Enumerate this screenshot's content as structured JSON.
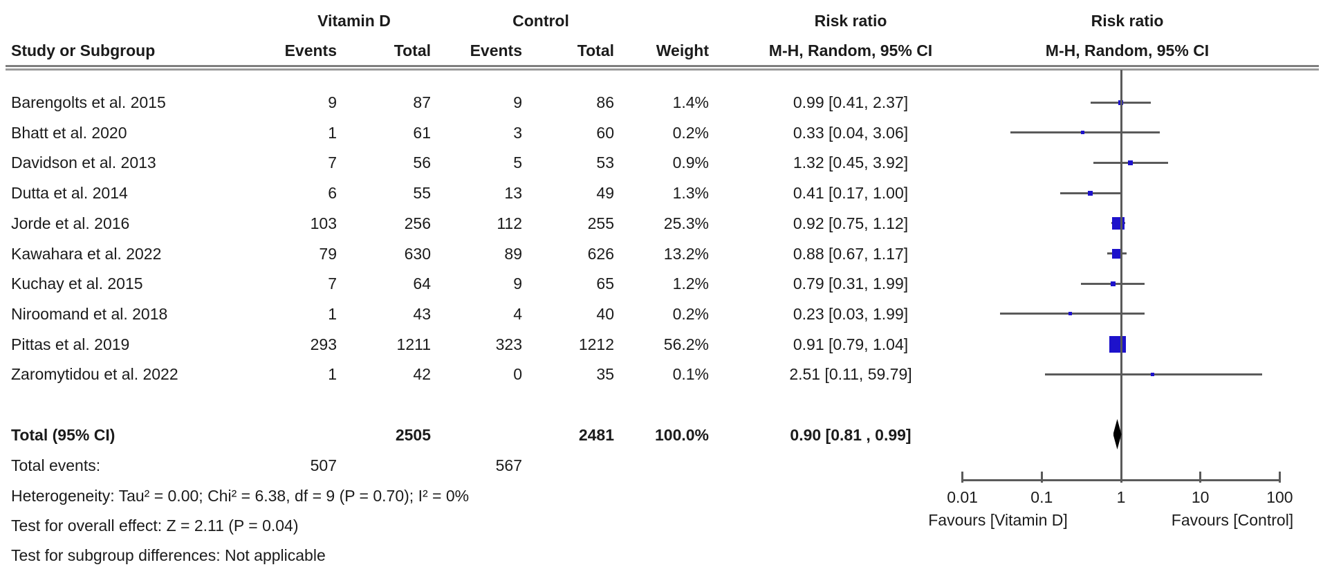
{
  "figure": {
    "headers": {
      "group_vitamin_d": "Vitamin D",
      "group_control": "Control",
      "risk_ratio_left": "Risk ratio",
      "risk_ratio_right": "Risk ratio",
      "study": "Study or Subgroup",
      "events_vd": "Events",
      "total_vd": "Total",
      "events_ctrl": "Events",
      "total_ctrl": "Total",
      "weight": "Weight",
      "mh_left": "M-H, Random, 95% CI",
      "mh_right": "M-H, Random, 95% CI"
    },
    "totals": {
      "label": "Total (95% CI)",
      "vd_total": "2505",
      "ctrl_total": "2481",
      "weight": "100.0%",
      "rr_text": "0.90 [0.81 , 0.99]"
    },
    "total_events": {
      "label": "Total events:",
      "vd_events": "507",
      "ctrl_events": "567"
    },
    "footnotes": {
      "heterogeneity": "Heterogeneity: Tau² = 0.00; Chi² = 6.38, df = 9 (P = 0.70); I² = 0%",
      "overall_effect": "Test for overall effect: Z = 2.11 (P = 0.04)",
      "subgroup_differences": "Test for subgroup differences: Not applicable"
    },
    "colors": {
      "marker_blue": "#1d12cb",
      "ci_gray": "#5a5a5a",
      "diamond_black": "#000000"
    }
  },
  "chart_data": {
    "type": "forest",
    "effect_measure": "Risk ratio",
    "method": "M-H, Random, 95% CI",
    "x_scale": "log10",
    "xlim": [
      0.01,
      100
    ],
    "x_ticks": [
      0.01,
      0.1,
      1,
      10,
      100
    ],
    "x_tick_labels": [
      "0.01",
      "0.1",
      "1",
      "10",
      "100"
    ],
    "favours_left": "Favours [Vitamin D]",
    "favours_right": "Favours [Control]",
    "studies": [
      {
        "study": "Barengolts et al. 2015",
        "vd_events": "9",
        "vd_total": "87",
        "ctrl_events": "9",
        "ctrl_total": "86",
        "weight": "1.4%",
        "weight_pct": 1.4,
        "rr_text": "0.99 [0.41, 2.37]",
        "rr": 0.99,
        "ci_low": 0.41,
        "ci_high": 2.37
      },
      {
        "study": "Bhatt et al. 2020",
        "vd_events": "1",
        "vd_total": "61",
        "ctrl_events": "3",
        "ctrl_total": "60",
        "weight": "0.2%",
        "weight_pct": 0.2,
        "rr_text": "0.33 [0.04, 3.06]",
        "rr": 0.33,
        "ci_low": 0.04,
        "ci_high": 3.06
      },
      {
        "study": "Davidson et al. 2013",
        "vd_events": "7",
        "vd_total": "56",
        "ctrl_events": "5",
        "ctrl_total": "53",
        "weight": "0.9%",
        "weight_pct": 0.9,
        "rr_text": "1.32 [0.45, 3.92]",
        "rr": 1.32,
        "ci_low": 0.45,
        "ci_high": 3.92
      },
      {
        "study": "Dutta et al. 2014",
        "vd_events": "6",
        "vd_total": "55",
        "ctrl_events": "13",
        "ctrl_total": "49",
        "weight": "1.3%",
        "weight_pct": 1.3,
        "rr_text": "0.41 [0.17, 1.00]",
        "rr": 0.41,
        "ci_low": 0.17,
        "ci_high": 1.0
      },
      {
        "study": "Jorde et al. 2016",
        "vd_events": "103",
        "vd_total": "256",
        "ctrl_events": "112",
        "ctrl_total": "255",
        "weight": "25.3%",
        "weight_pct": 25.3,
        "rr_text": "0.92 [0.75, 1.12]",
        "rr": 0.92,
        "ci_low": 0.75,
        "ci_high": 1.12
      },
      {
        "study": "Kawahara et al. 2022",
        "vd_events": "79",
        "vd_total": "630",
        "ctrl_events": "89",
        "ctrl_total": "626",
        "weight": "13.2%",
        "weight_pct": 13.2,
        "rr_text": "0.88 [0.67, 1.17]",
        "rr": 0.88,
        "ci_low": 0.67,
        "ci_high": 1.17
      },
      {
        "study": "Kuchay et al. 2015",
        "vd_events": "7",
        "vd_total": "64",
        "ctrl_events": "9",
        "ctrl_total": "65",
        "weight": "1.2%",
        "weight_pct": 1.2,
        "rr_text": "0.79 [0.31, 1.99]",
        "rr": 0.79,
        "ci_low": 0.31,
        "ci_high": 1.99
      },
      {
        "study": "Niroomand et al. 2018",
        "vd_events": "1",
        "vd_total": "43",
        "ctrl_events": "4",
        "ctrl_total": "40",
        "weight": "0.2%",
        "weight_pct": 0.2,
        "rr_text": "0.23 [0.03, 1.99]",
        "rr": 0.23,
        "ci_low": 0.03,
        "ci_high": 1.99
      },
      {
        "study": "Pittas et al. 2019",
        "vd_events": "293",
        "vd_total": "1211",
        "ctrl_events": "323",
        "ctrl_total": "1212",
        "weight": "56.2%",
        "weight_pct": 56.2,
        "rr_text": "0.91 [0.79, 1.04]",
        "rr": 0.91,
        "ci_low": 0.79,
        "ci_high": 1.04
      },
      {
        "study": "Zaromytidou et al. 2022",
        "vd_events": "1",
        "vd_total": "42",
        "ctrl_events": "0",
        "ctrl_total": "35",
        "weight": "0.1%",
        "weight_pct": 0.1,
        "rr_text": "2.51 [0.11, 59.79]",
        "rr": 2.51,
        "ci_low": 0.11,
        "ci_high": 59.79
      }
    ],
    "total": {
      "rr": 0.9,
      "ci_low": 0.81,
      "ci_high": 0.99
    }
  }
}
